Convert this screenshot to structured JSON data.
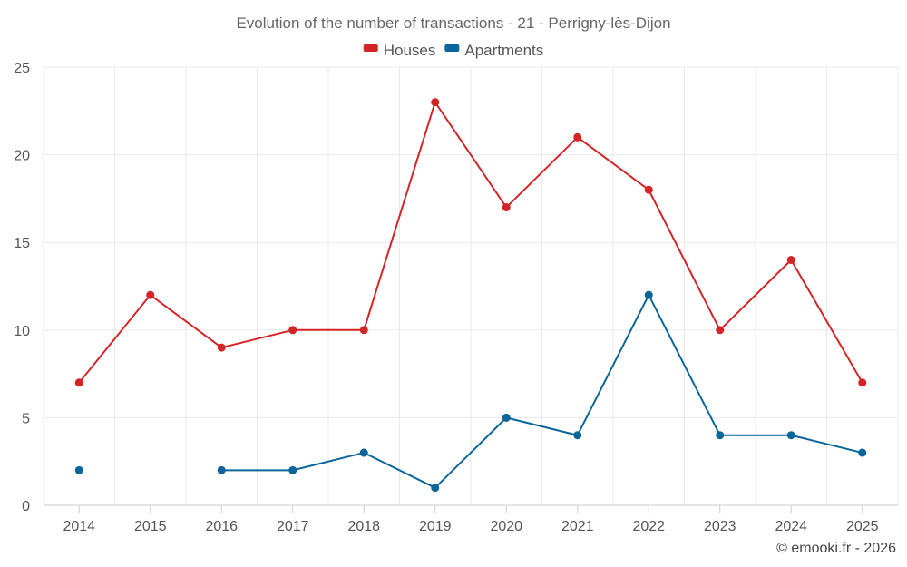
{
  "chart_data": {
    "type": "line",
    "title": "Evolution of the number of transactions - 21 - Perrigny-lès-Dijon",
    "categories": [
      "2014",
      "2015",
      "2016",
      "2017",
      "2018",
      "2019",
      "2020",
      "2021",
      "2022",
      "2023",
      "2024",
      "2025"
    ],
    "series": [
      {
        "name": "Houses",
        "color": "#d32528",
        "values": [
          7,
          12,
          9,
          10,
          10,
          23,
          17,
          21,
          18,
          10,
          14,
          7
        ]
      },
      {
        "name": "Apartments",
        "color": "#0a6699",
        "values": [
          2,
          null,
          2,
          2,
          3,
          1,
          5,
          4,
          12,
          4,
          4,
          3
        ]
      }
    ],
    "ylim": [
      0,
      25
    ],
    "yticks": [
      0,
      5,
      10,
      15,
      20,
      25
    ],
    "grid": true,
    "legend": "top-center",
    "xlabel": "",
    "ylabel": ""
  },
  "credit": "© emooki.fr - 2026"
}
